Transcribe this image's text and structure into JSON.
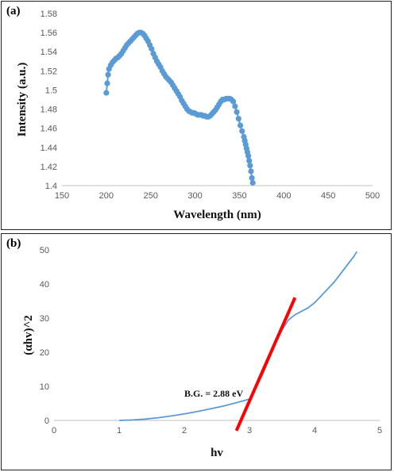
{
  "chart_data": [
    {
      "panel_label": "(a)",
      "type": "scatter",
      "title": "",
      "xlabel": "Wavelength (nm)",
      "ylabel": "Intensity (a.u.)",
      "xlim": [
        150,
        500
      ],
      "ylim": [
        1.4,
        1.58
      ],
      "xticks": [
        "150",
        "200",
        "250",
        "300",
        "350",
        "400",
        "450",
        "500"
      ],
      "yticks": [
        "1.4",
        "1.42",
        "1.44",
        "1.46",
        "1.48",
        "1.5",
        "1.52",
        "1.54",
        "1.56",
        "1.58"
      ],
      "grid": false,
      "legend": "none",
      "marker_color": "#5B9BD5",
      "series": [
        {
          "x": [
            200,
            201,
            202,
            203,
            205,
            207,
            209,
            211,
            213,
            215,
            217,
            219,
            221,
            223,
            225,
            227,
            229,
            231,
            233,
            235,
            237,
            239,
            241,
            243,
            245,
            247,
            249,
            251,
            253,
            255,
            257,
            259,
            261,
            263,
            265,
            267,
            269,
            271,
            273,
            275,
            277,
            279,
            281,
            283,
            285,
            287,
            289,
            291,
            293,
            295,
            297,
            299,
            301,
            303,
            305,
            307,
            309,
            311,
            313,
            315,
            317,
            319,
            321,
            323,
            325,
            327,
            329,
            331,
            333,
            335,
            337,
            339,
            341,
            343,
            345,
            347,
            349,
            351,
            353,
            355,
            356,
            357,
            358,
            359,
            360,
            361,
            362,
            363,
            364,
            365
          ],
          "y": [
            1.497,
            1.507,
            1.516,
            1.522,
            1.526,
            1.529,
            1.531,
            1.533,
            1.534,
            1.536,
            1.538,
            1.541,
            1.544,
            1.547,
            1.549,
            1.551,
            1.553,
            1.555,
            1.557,
            1.559,
            1.56,
            1.56,
            1.559,
            1.557,
            1.554,
            1.551,
            1.547,
            1.543,
            1.538,
            1.534,
            1.53,
            1.527,
            1.524,
            1.52,
            1.517,
            1.514,
            1.512,
            1.51,
            1.508,
            1.505,
            1.502,
            1.499,
            1.496,
            1.493,
            1.489,
            1.486,
            1.483,
            1.48,
            1.478,
            1.477,
            1.476,
            1.476,
            1.475,
            1.474,
            1.474,
            1.474,
            1.473,
            1.473,
            1.472,
            1.472,
            1.473,
            1.475,
            1.477,
            1.479,
            1.482,
            1.485,
            1.488,
            1.49,
            1.49,
            1.491,
            1.491,
            1.491,
            1.49,
            1.488,
            1.483,
            1.477,
            1.47,
            1.463,
            1.457,
            1.451,
            1.447,
            1.443,
            1.439,
            1.435,
            1.431,
            1.426,
            1.421,
            1.415,
            1.408,
            1.403
          ]
        }
      ]
    },
    {
      "panel_label": "(b)",
      "type": "line",
      "title": "",
      "xlabel": "hv",
      "ylabel": "(αhv)^2",
      "xlim": [
        0,
        5
      ],
      "ylim": [
        0,
        50
      ],
      "xticks": [
        "0",
        "1",
        "2",
        "3",
        "4",
        "5"
      ],
      "yticks": [
        "0",
        "10",
        "20",
        "30",
        "40",
        "50"
      ],
      "grid": false,
      "legend": "none",
      "series": [
        {
          "color": "#5B9BD5",
          "x": [
            1.0,
            1.2,
            1.4,
            1.6,
            1.8,
            2.0,
            2.2,
            2.4,
            2.6,
            2.8,
            2.95,
            3.0,
            3.1,
            3.2,
            3.3,
            3.4,
            3.5,
            3.6,
            3.7,
            3.8,
            3.9,
            4.0,
            4.1,
            4.2,
            4.3,
            4.4,
            4.5,
            4.6,
            4.65
          ],
          "y": [
            0,
            0.15,
            0.4,
            0.8,
            1.3,
            1.9,
            2.6,
            3.4,
            4.2,
            5.2,
            6.0,
            6.3,
            9.5,
            13.5,
            18.0,
            22.5,
            26.5,
            29.5,
            31.0,
            32.0,
            33.0,
            34.5,
            36.5,
            38.5,
            40.5,
            43.0,
            45.5,
            48.0,
            49.5
          ]
        },
        {
          "color": "#FF0000",
          "x": [
            2.8,
            3.7
          ],
          "y": [
            -3,
            36
          ]
        }
      ],
      "annotation": "B.G. = 2.88 eV"
    }
  ]
}
